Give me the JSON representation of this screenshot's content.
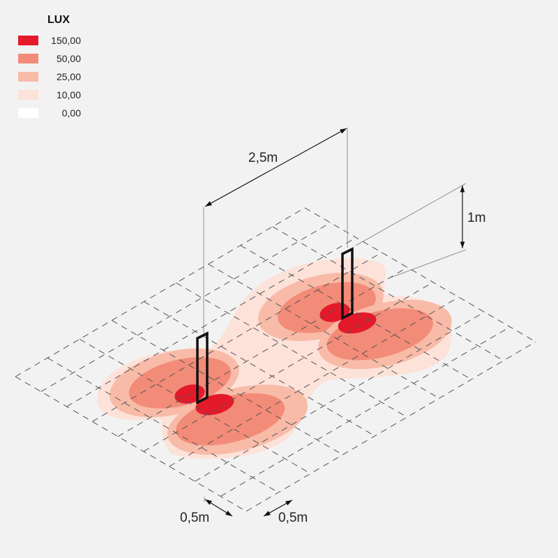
{
  "legend": {
    "title": "LUX",
    "items": [
      {
        "value": "150,00",
        "color": "#e41a2a"
      },
      {
        "value": "50,00",
        "color": "#f28b78"
      },
      {
        "value": "25,00",
        "color": "#f8bba8"
      },
      {
        "value": "10,00",
        "color": "#fde2da"
      },
      {
        "value": "0,00",
        "color": "#ffffff"
      }
    ]
  },
  "dimensions": {
    "spacing": "2,5m",
    "height": "1m",
    "grid_a": "0,5m",
    "grid_b": "0,5m"
  },
  "background": "#f2f2f2"
}
